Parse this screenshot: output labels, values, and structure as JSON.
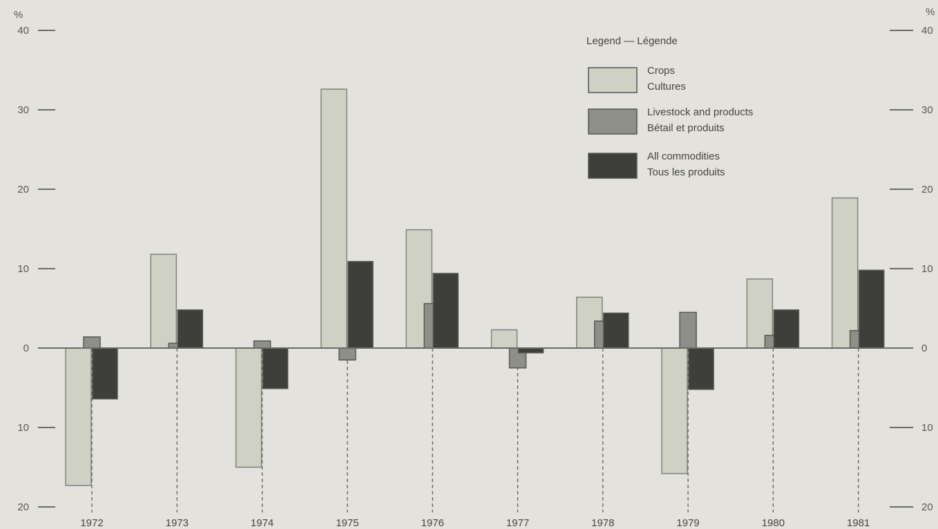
{
  "chart_data": {
    "type": "bar",
    "categories": [
      "1972",
      "1973",
      "1974",
      "1975",
      "1976",
      "1977",
      "1978",
      "1979",
      "1980",
      "1981"
    ],
    "series": [
      {
        "name": "Crops / Cultures",
        "values": [
          -17.3,
          11.8,
          -15.0,
          32.6,
          14.9,
          2.3,
          6.4,
          -15.8,
          8.7,
          18.9
        ],
        "color": "#cfd1c4"
      },
      {
        "name": "Livestock and products / Bétail et produits",
        "values": [
          1.4,
          0.6,
          0.9,
          -1.5,
          5.6,
          -2.5,
          3.4,
          4.5,
          1.6,
          2.2
        ],
        "color": "#8e8f88"
      },
      {
        "name": "All commodities / Tous les produits",
        "values": [
          -6.4,
          4.8,
          -5.1,
          10.9,
          9.4,
          -0.6,
          4.4,
          -5.2,
          4.8,
          9.8
        ],
        "color": "#3e3f3b"
      }
    ],
    "unit_label_left": "%",
    "unit_label_right": "%",
    "ylim": [
      -20,
      40
    ],
    "yticks": [
      -20,
      -10,
      0,
      10,
      20,
      30,
      40
    ],
    "ytick_labels": [
      "20",
      "10",
      "0",
      "10",
      "20",
      "30",
      "40"
    ],
    "legend": {
      "title": "Legend — Légende",
      "placement": "top-right",
      "entries": [
        {
          "line1": "Crops",
          "line2": "Cultures"
        },
        {
          "line1": "Livestock and products",
          "line2": "Bétail et produits"
        },
        {
          "line1": "All commodities",
          "line2": "Tous les produits"
        }
      ]
    },
    "grid": false
  }
}
